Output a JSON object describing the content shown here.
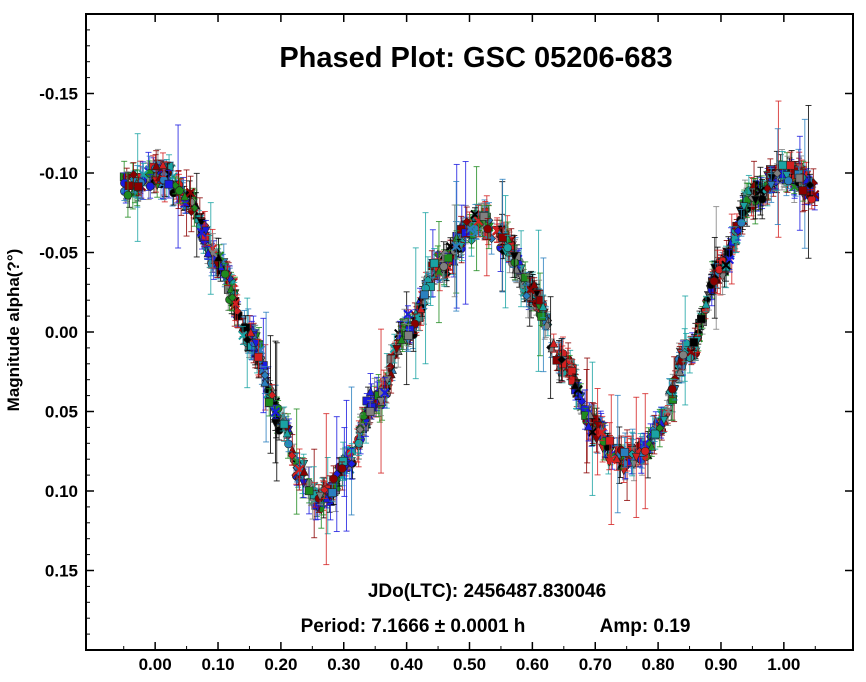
{
  "chart_data": {
    "type": "scatter",
    "title": "Phased Plot: GSC 05206-683",
    "xlabel": "",
    "ylabel": "Magnitude alpha(?°)",
    "xlim": [
      -0.11,
      1.11
    ],
    "ylim": [
      0.2,
      -0.2
    ],
    "y_inverted": true,
    "grid": false,
    "legend": "none",
    "x_ticks": [
      0.0,
      0.1,
      0.2,
      0.3,
      0.4,
      0.5,
      0.6,
      0.7,
      0.8,
      0.9,
      1.0
    ],
    "x_tick_labels": [
      "0.00",
      "0.10",
      "0.20",
      "0.30",
      "0.40",
      "0.50",
      "0.60",
      "0.70",
      "0.80",
      "0.90",
      "1.00"
    ],
    "y_ticks": [
      -0.15,
      -0.1,
      -0.05,
      0.0,
      0.05,
      0.1,
      0.15
    ],
    "y_tick_labels": [
      "-0.15",
      "-0.10",
      "-0.05",
      "0.00",
      "0.05",
      "0.10",
      "0.15"
    ],
    "annotations": {
      "epoch": "JDo(LTC): 2456487.830046",
      "period": "Period: 7.1666 ± 0.0001 h",
      "amp": "Amp: 0.19"
    },
    "marker_colors": [
      "#000000",
      "#d42020",
      "#1a1ae0",
      "#1f8a1f",
      "#1aa3a3",
      "#8a0000",
      "#808080",
      "#2a7fbf"
    ],
    "curve": {
      "x": [
        -0.05,
        0.0,
        0.02,
        0.05,
        0.1,
        0.15,
        0.2,
        0.23,
        0.26,
        0.28,
        0.3,
        0.35,
        0.4,
        0.45,
        0.5,
        0.52,
        0.55,
        0.6,
        0.65,
        0.7,
        0.73,
        0.75,
        0.78,
        0.8,
        0.85,
        0.9,
        0.95,
        1.0,
        1.02,
        1.05
      ],
      "y": [
        -0.09,
        -0.1,
        -0.098,
        -0.085,
        -0.045,
        0.005,
        0.055,
        0.09,
        0.105,
        0.1,
        0.085,
        0.045,
        0.0,
        -0.04,
        -0.065,
        -0.07,
        -0.06,
        -0.025,
        0.02,
        0.06,
        0.078,
        0.08,
        0.075,
        0.06,
        0.01,
        -0.04,
        -0.085,
        -0.1,
        -0.098,
        -0.088
      ]
    }
  }
}
